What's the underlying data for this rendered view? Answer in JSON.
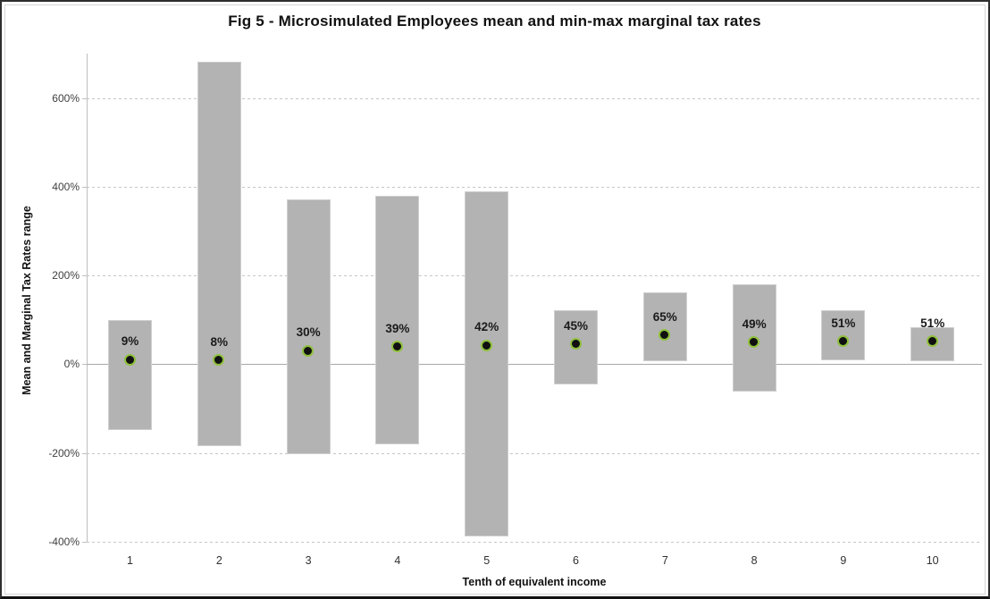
{
  "chart_data": {
    "type": "bar",
    "subtype": "floating-range-bars-with-mean-points",
    "title": "Fig 5 - Microsimulated Employees mean and min-max marginal tax rates",
    "xlabel": "Tenth of equivalent income",
    "ylabel": "Mean and Marginal Tax Rates  range",
    "categories": [
      "1",
      "2",
      "3",
      "4",
      "5",
      "6",
      "7",
      "8",
      "9",
      "10"
    ],
    "series": [
      {
        "name": "min-max marginal tax rate range",
        "type": "range-bar",
        "low": [
          -148,
          -185,
          -202,
          -180,
          -388,
          -45,
          6,
          -61,
          8,
          6
        ],
        "high": [
          100,
          682,
          371,
          380,
          390,
          122,
          162,
          180,
          121,
          84
        ]
      },
      {
        "name": "mean marginal tax rate",
        "type": "scatter",
        "values": [
          9,
          8,
          30,
          39,
          42,
          45,
          65,
          49,
          51,
          51
        ],
        "labels": [
          "9%",
          "8%",
          "30%",
          "39%",
          "42%",
          "45%",
          "65%",
          "49%",
          "51%",
          "51%"
        ]
      }
    ],
    "ylim": [
      -400,
      700
    ],
    "yticks": [
      {
        "value": 600,
        "label": "600%"
      },
      {
        "value": 400,
        "label": "400%"
      },
      {
        "value": 200,
        "label": "200%"
      },
      {
        "value": 0,
        "label": "0%"
      },
      {
        "value": -200,
        "label": "-200%"
      },
      {
        "value": -400,
        "label": "-400%"
      }
    ],
    "grid": "horizontal-dashed, solid zero line",
    "legend": "none",
    "colors": {
      "bar": "#b3b3b3",
      "bar_border": "#cfcfcf",
      "dot_fill": "#101010",
      "dot_ring": "#8fc03c",
      "gridline": "#c6c6c6",
      "zero_line": "#a8a8a8",
      "axis_text": "#404040",
      "label_text": "#1a1a1a",
      "background": "#ffffff"
    }
  }
}
